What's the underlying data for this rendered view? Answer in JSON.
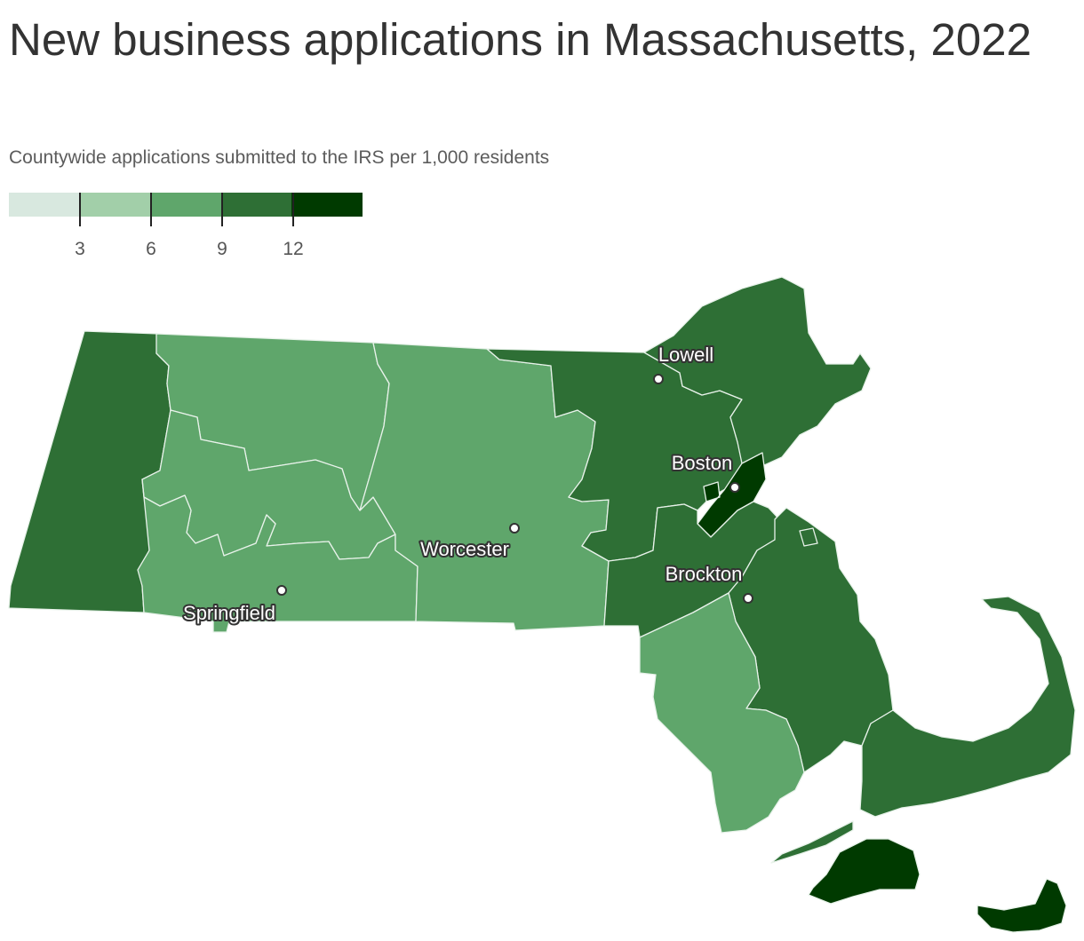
{
  "title": "New business applications in Massachusetts, 2022",
  "subtitle": "Countywide applications submitted to the IRS per 1,000 residents",
  "legend": {
    "tick_labels": [
      "3",
      "6",
      "9",
      "12"
    ],
    "colors": [
      "#d8e8df",
      "#a2cfa9",
      "#5fa66b",
      "#2e6f35",
      "#003a00"
    ]
  },
  "colors": {
    "border": "#e8f2ea"
  },
  "cities": [
    {
      "name": "Lowell"
    },
    {
      "name": "Boston"
    },
    {
      "name": "Worcester"
    },
    {
      "name": "Brockton"
    },
    {
      "name": "Springfield"
    }
  ],
  "counties": [
    {
      "name": "Berkshire",
      "bin": 3
    },
    {
      "name": "Franklin",
      "bin": 2
    },
    {
      "name": "Hampshire",
      "bin": 2
    },
    {
      "name": "Hampden",
      "bin": 2
    },
    {
      "name": "Worcester",
      "bin": 2
    },
    {
      "name": "Middlesex",
      "bin": 3
    },
    {
      "name": "Essex",
      "bin": 3
    },
    {
      "name": "Suffolk",
      "bin": 4
    },
    {
      "name": "Norfolk",
      "bin": 3
    },
    {
      "name": "Plymouth",
      "bin": 3
    },
    {
      "name": "Bristol",
      "bin": 2
    },
    {
      "name": "Barnstable",
      "bin": 3
    },
    {
      "name": "Dukes",
      "bin": 4
    },
    {
      "name": "Nantucket",
      "bin": 4
    }
  ]
}
